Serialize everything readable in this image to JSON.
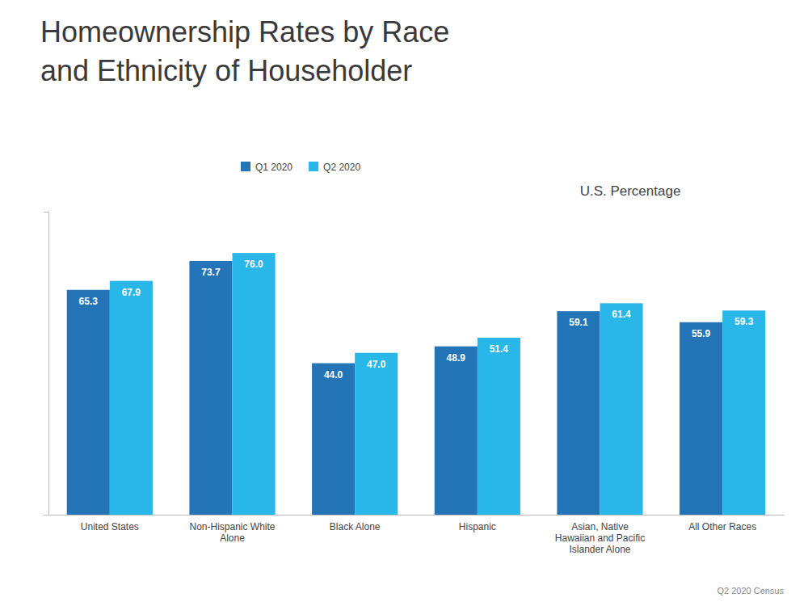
{
  "chart_data": {
    "type": "bar",
    "title": "Homeownership Rates by Race\nand Ethnicity of Householder",
    "subtitle": "U.S. Percentage",
    "annotations": [
      "Q2 2020 Census"
    ],
    "categories": [
      "United States",
      "Non-Hispanic White\nAlone",
      "Black Alone",
      "Hispanic",
      "Asian, Native\nHawaiian and Pacific\nIslander Alone",
      "All Other Races"
    ],
    "series": [
      {
        "name": "Q1 2020",
        "color": "#2475b8",
        "values": [
          65.3,
          73.7,
          44.0,
          48.9,
          59.1,
          55.9
        ],
        "value_labels": [
          "65.3",
          "73.7",
          "44.0",
          "48.9",
          "59.1",
          "55.9"
        ]
      },
      {
        "name": "Q2 2020",
        "color": "#29b6e8",
        "values": [
          67.9,
          76.0,
          47.0,
          51.4,
          61.4,
          59.3
        ],
        "value_labels": [
          "67.9",
          "76.0",
          "47.0",
          "51.4",
          "61.4",
          "59.3"
        ]
      }
    ],
    "ylim": [
      0,
      88
    ],
    "yticks": [],
    "grid": false,
    "legend": "top",
    "data_labels": true,
    "tick_labels": "x"
  }
}
